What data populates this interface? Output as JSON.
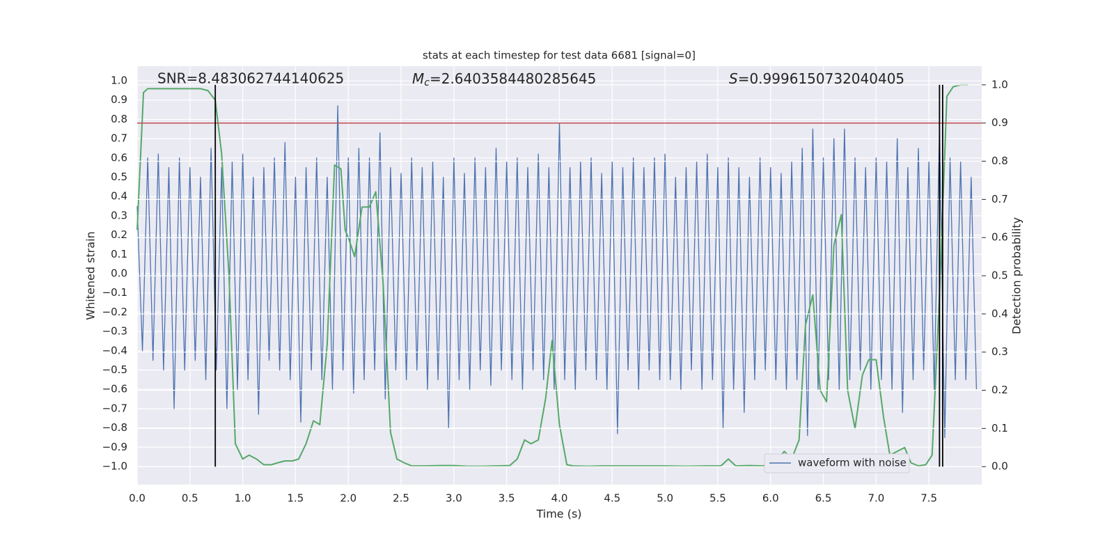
{
  "chart_data": {
    "type": "line",
    "title": "stats at each timestep for test data 6681 [signal=0]",
    "xlabel": "Time (s)",
    "ylabel": "Whitened strain",
    "y2label": "Detection probability",
    "annotations": [
      {
        "text": "SNR=8.483062744140625"
      },
      {
        "symbol": "M",
        "subscript": "c",
        "text": "=2.6403584480285645"
      },
      {
        "symbol": "S",
        "text": "=0.9996150732040405"
      }
    ],
    "xlim": [
      0,
      8.0
    ],
    "ylim": [
      -1.094,
      1.076
    ],
    "y2lim": [
      -0.047,
      1.049
    ],
    "xticks": [
      {
        "value": 0,
        "label": "0.0"
      },
      0.5,
      {
        "value": 1,
        "label": "1.0"
      },
      1.5,
      {
        "value": 2,
        "label": "2.0"
      },
      2.5,
      {
        "value": 3,
        "label": "3.0"
      },
      3.5,
      {
        "value": 4,
        "label": "4.0"
      },
      4.5,
      {
        "value": 5,
        "label": "5.0"
      },
      5.5,
      {
        "value": 6,
        "label": "6.0"
      },
      6.5,
      {
        "value": 7,
        "label": "7.0"
      },
      7.5
    ],
    "yticks": [
      {
        "value": -1,
        "label": "−1.0"
      },
      {
        "value": -0.9,
        "label": "−0.9"
      },
      {
        "value": -0.8,
        "label": "−0.8"
      },
      {
        "value": -0.7,
        "label": "−0.7"
      },
      {
        "value": -0.6,
        "label": "−0.6"
      },
      {
        "value": -0.5,
        "label": "−0.5"
      },
      {
        "value": -0.4,
        "label": "−0.4"
      },
      {
        "value": -0.3,
        "label": "−0.3"
      },
      {
        "value": -0.2,
        "label": "−0.2"
      },
      {
        "value": -0.1,
        "label": "−0.1"
      },
      {
        "value": 0,
        "label": "0.0"
      },
      0.1,
      0.2,
      0.3,
      0.4,
      0.5,
      0.6,
      0.7,
      0.8,
      0.9,
      {
        "value": 1,
        "label": "1.0"
      }
    ],
    "y2ticks": [
      {
        "value": 0,
        "label": "0.0"
      },
      0.1,
      0.2,
      0.3,
      0.4,
      0.5,
      0.6,
      0.7,
      0.8,
      0.9,
      {
        "value": 1,
        "label": "1.0"
      }
    ],
    "grid": true,
    "legend": "lower right",
    "series": [
      {
        "name": "waveform with noise",
        "color": "#4c72b0",
        "x": [
          0,
          0.05,
          0.1,
          0.15,
          0.2,
          0.25,
          0.3,
          0.35,
          0.4,
          0.45,
          0.5,
          0.55,
          0.6,
          0.65,
          0.7,
          0.75,
          0.8,
          0.85,
          0.9,
          0.95,
          1,
          1.05,
          1.1,
          1.15,
          1.2,
          1.25,
          1.3,
          1.35,
          1.4,
          1.45,
          1.5,
          1.55,
          1.6,
          1.65,
          1.7,
          1.75,
          1.8,
          1.85,
          1.9,
          1.95,
          2,
          2.05,
          2.1,
          2.15,
          2.2,
          2.25,
          2.3,
          2.35,
          2.4,
          2.45,
          2.5,
          2.55,
          2.6,
          2.65,
          2.7,
          2.75,
          2.8,
          2.85,
          2.9,
          2.95,
          3,
          3.05,
          3.1,
          3.15,
          3.2,
          3.25,
          3.3,
          3.35,
          3.4,
          3.45,
          3.5,
          3.55,
          3.6,
          3.65,
          3.7,
          3.75,
          3.8,
          3.85,
          3.9,
          3.95,
          4,
          4.05,
          4.1,
          4.15,
          4.2,
          4.25,
          4.3,
          4.35,
          4.4,
          4.45,
          4.5,
          4.55,
          4.6,
          4.65,
          4.7,
          4.75,
          4.8,
          4.85,
          4.9,
          4.95,
          5,
          5.05,
          5.1,
          5.15,
          5.2,
          5.25,
          5.3,
          5.35,
          5.4,
          5.45,
          5.5,
          5.55,
          5.6,
          5.65,
          5.7,
          5.75,
          5.8,
          5.85,
          5.9,
          5.95,
          6,
          6.05,
          6.1,
          6.15,
          6.2,
          6.25,
          6.3,
          6.35,
          6.4,
          6.45,
          6.5,
          6.55,
          6.6,
          6.65,
          6.7,
          6.75,
          6.8,
          6.85,
          6.9,
          6.95,
          7,
          7.05,
          7.1,
          7.15,
          7.2,
          7.25,
          7.3,
          7.35,
          7.4,
          7.45,
          7.5,
          7.55,
          7.6,
          7.65,
          7.7,
          7.75,
          7.8,
          7.85,
          7.9,
          7.95
        ],
        "values": [
          0.35,
          -0.4,
          0.6,
          -0.45,
          0.62,
          -0.5,
          0.55,
          -0.7,
          0.6,
          -0.5,
          0.55,
          -0.45,
          0.5,
          -0.55,
          0.65,
          -0.5,
          0.55,
          -0.7,
          0.58,
          -0.6,
          0.62,
          -0.55,
          0.5,
          -0.73,
          0.55,
          -0.45,
          0.6,
          -0.5,
          0.68,
          -0.55,
          0.5,
          -0.77,
          0.55,
          -0.5,
          0.6,
          -0.55,
          0.5,
          -0.6,
          0.87,
          -0.5,
          0.6,
          -0.62,
          0.65,
          -0.55,
          0.6,
          -0.5,
          0.73,
          -0.65,
          0.55,
          -0.5,
          0.52,
          -0.55,
          0.6,
          -0.5,
          0.55,
          -0.6,
          0.58,
          -0.55,
          0.5,
          -0.8,
          0.6,
          -0.55,
          0.52,
          -0.6,
          0.6,
          -0.5,
          0.55,
          -0.58,
          0.65,
          -0.5,
          0.58,
          -0.55,
          0.6,
          -0.6,
          0.55,
          -0.5,
          0.62,
          -0.55,
          0.55,
          -0.6,
          0.78,
          -0.55,
          0.55,
          -0.6,
          0.58,
          -0.5,
          0.6,
          -0.55,
          0.52,
          -0.6,
          0.58,
          -0.83,
          0.55,
          -0.5,
          0.6,
          -0.6,
          0.55,
          -0.5,
          0.6,
          -0.55,
          0.62,
          -0.55,
          0.5,
          -0.6,
          0.55,
          -0.5,
          0.58,
          -0.6,
          0.62,
          -0.55,
          0.55,
          -0.8,
          0.6,
          -0.6,
          0.55,
          -0.72,
          0.5,
          -0.55,
          0.6,
          -0.5,
          0.55,
          -0.55,
          0.52,
          -0.6,
          0.58,
          -0.55,
          0.65,
          -0.84,
          0.75,
          -0.6,
          0.6,
          -0.55,
          0.7,
          -0.6,
          0.75,
          -0.55,
          0.6,
          -0.5,
          0.55,
          -0.6,
          0.6,
          -0.55,
          0.58,
          -0.6,
          0.7,
          -0.72,
          0.55,
          -0.55,
          0.65,
          -0.5,
          0.58,
          -0.6,
          0.75,
          -0.85,
          0.6,
          -0.55,
          0.58,
          -0.55,
          0.5,
          -0.6
        ]
      },
      {
        "color": "#55a868",
        "axis": "y2",
        "x": [
          0,
          0.06,
          0.1,
          0.2,
          0.3,
          0.4,
          0.5,
          0.6,
          0.67,
          0.74,
          0.8,
          0.87,
          0.93,
          1.0,
          1.06,
          1.13,
          1.2,
          1.27,
          1.33,
          1.4,
          1.47,
          1.53,
          1.6,
          1.67,
          1.73,
          1.8,
          1.87,
          1.93,
          1.97,
          2.0,
          2.06,
          2.13,
          2.2,
          2.26,
          2.33,
          2.4,
          2.46,
          2.53,
          2.6,
          2.73,
          2.87,
          3.0,
          3.13,
          3.27,
          3.4,
          3.53,
          3.6,
          3.67,
          3.73,
          3.8,
          3.87,
          3.93,
          4.0,
          4.07,
          4.13,
          4.27,
          4.4,
          4.6,
          4.8,
          5.0,
          5.2,
          5.4,
          5.53,
          5.6,
          5.67,
          5.8,
          5.93,
          6.07,
          6.13,
          6.2,
          6.27,
          6.33,
          6.4,
          6.47,
          6.53,
          6.6,
          6.67,
          6.73,
          6.8,
          6.87,
          6.93,
          7.0,
          7.07,
          7.13,
          7.2,
          7.27,
          7.33,
          7.4,
          7.47,
          7.53,
          7.6,
          7.67,
          7.73,
          7.8,
          7.87
        ],
        "values": [
          0.62,
          0.98,
          0.99,
          0.99,
          0.99,
          0.99,
          0.99,
          0.99,
          0.985,
          0.96,
          0.82,
          0.5,
          0.06,
          0.02,
          0.03,
          0.02,
          0.005,
          0.005,
          0.01,
          0.015,
          0.015,
          0.02,
          0.06,
          0.12,
          0.11,
          0.32,
          0.79,
          0.78,
          0.62,
          0.6,
          0.55,
          0.68,
          0.68,
          0.72,
          0.48,
          0.09,
          0.02,
          0.01,
          0.002,
          0.002,
          0.003,
          0.003,
          0.001,
          0.001,
          0.002,
          0.003,
          0.02,
          0.07,
          0.06,
          0.07,
          0.18,
          0.33,
          0.11,
          0.005,
          0.002,
          0.001,
          0.002,
          0.002,
          0.002,
          0.002,
          0.001,
          0.002,
          0.002,
          0.02,
          0.002,
          0.003,
          0.002,
          0.02,
          0.04,
          0.02,
          0.07,
          0.37,
          0.45,
          0.2,
          0.17,
          0.58,
          0.66,
          0.2,
          0.1,
          0.24,
          0.28,
          0.28,
          0.13,
          0.03,
          0.04,
          0.05,
          0.01,
          0.002,
          0.005,
          0.03,
          0.45,
          0.97,
          0.995,
          1.0,
          1.0
        ]
      }
    ],
    "threshold": {
      "value": 0.9,
      "axis": "y2",
      "color": "#c44e52"
    },
    "vlines": {
      "x": [
        0.74,
        7.6,
        7.63
      ],
      "color": "#000000"
    }
  }
}
